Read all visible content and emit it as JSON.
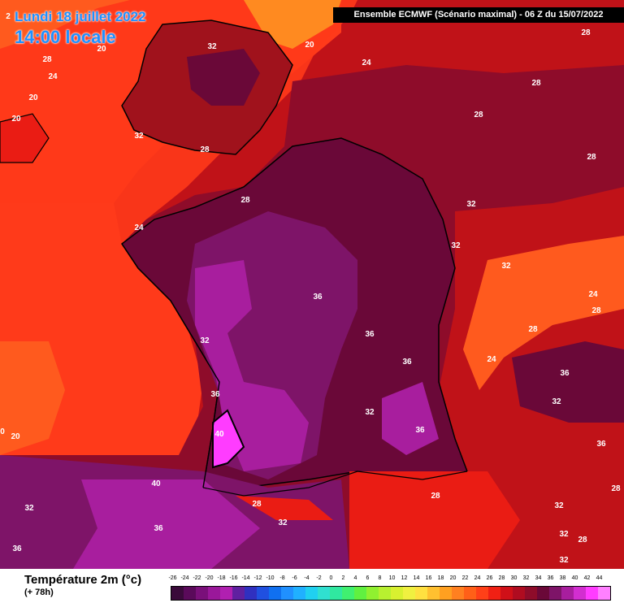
{
  "title": {
    "date": "Lundi 18 juillet 2022",
    "time": "14:00 locale"
  },
  "run_info": "Ensemble ECMWF  (Scénario maximal) - 06 Z du 15/07/2022",
  "footer": {
    "variable": "Température 2m (°c)",
    "lead": "(+ 78h)"
  },
  "colors": {
    "t20": "#ff5a1e",
    "t24": "#ff3a1a",
    "t28": "#ea1c14",
    "t30": "#c0101a",
    "t32": "#8e0c2a",
    "t34": "#6a0838",
    "t36": "#7e1468",
    "t38": "#a81e9e",
    "t40": "#d22ed0",
    "t42": "#ff3cff",
    "coast": "#000000"
  },
  "isotherm_labels": [
    {
      "text": "2"
    },
    {
      "text": "32"
    },
    {
      "text": "20"
    },
    {
      "text": "28"
    },
    {
      "text": "28"
    },
    {
      "text": "24"
    },
    {
      "text": "24"
    },
    {
      "text": "20"
    },
    {
      "text": "28"
    },
    {
      "text": "20"
    },
    {
      "text": "32"
    },
    {
      "text": "28"
    },
    {
      "text": "20"
    },
    {
      "text": "28"
    },
    {
      "text": "28"
    },
    {
      "text": "32"
    },
    {
      "text": "24"
    },
    {
      "text": "32"
    },
    {
      "text": "32"
    },
    {
      "text": "36"
    },
    {
      "text": "24"
    },
    {
      "text": "28"
    },
    {
      "text": "28"
    },
    {
      "text": "32"
    },
    {
      "text": "36"
    },
    {
      "text": "36"
    },
    {
      "text": "36"
    },
    {
      "text": "24"
    },
    {
      "text": "36"
    },
    {
      "text": "32"
    },
    {
      "text": "36"
    },
    {
      "text": "32"
    },
    {
      "text": "36"
    },
    {
      "text": "40"
    },
    {
      "text": "20"
    },
    {
      "text": "0"
    },
    {
      "text": "40"
    },
    {
      "text": "28"
    },
    {
      "text": "32"
    },
    {
      "text": "32"
    },
    {
      "text": "28"
    },
    {
      "text": "32"
    },
    {
      "text": "36"
    },
    {
      "text": "32"
    },
    {
      "text": "28"
    },
    {
      "text": "36"
    },
    {
      "text": "32"
    },
    {
      "text": "28"
    },
    {
      "text": "28"
    }
  ],
  "legend": {
    "ticks": [
      "-26",
      "-24",
      "-22",
      "-20",
      "-18",
      "-16",
      "-14",
      "-12",
      "-10",
      "-8",
      "-6",
      "-4",
      "-2",
      "0",
      "2",
      "4",
      "6",
      "8",
      "10",
      "12",
      "14",
      "16",
      "18",
      "20",
      "22",
      "24",
      "26",
      "28",
      "30",
      "32",
      "34",
      "36",
      "38",
      "40",
      "42",
      "44"
    ],
    "swatches": [
      "#3a0a3a",
      "#5a0a5a",
      "#7a107a",
      "#9a189a",
      "#b020b0",
      "#6020a0",
      "#3030c0",
      "#2050e0",
      "#1070f0",
      "#2090ff",
      "#20b0ff",
      "#20d0f0",
      "#30e0d0",
      "#30e8a0",
      "#40f070",
      "#60f040",
      "#90f030",
      "#b8f030",
      "#d8f030",
      "#f0f040",
      "#ffe040",
      "#ffc030",
      "#ffa020",
      "#ff8020",
      "#ff6018",
      "#ff4018",
      "#f02014",
      "#d01018",
      "#b00c20",
      "#8e0c2a",
      "#6a0838",
      "#7e1468",
      "#a81e9e",
      "#d22ed0",
      "#ff3cff",
      "#ff80ff"
    ]
  }
}
